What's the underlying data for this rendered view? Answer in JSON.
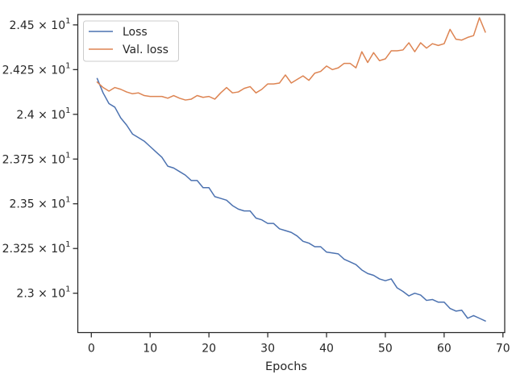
{
  "chart_data": {
    "type": "line",
    "title": "",
    "xlabel": "Epochs",
    "ylabel": "",
    "xlim": [
      -2.3,
      70.3
    ],
    "ylim": [
      22.78,
      24.558
    ],
    "xticks": [
      0,
      10,
      20,
      30,
      40,
      50,
      60,
      70
    ],
    "xtick_labels": [
      "0",
      "10",
      "20",
      "30",
      "40",
      "50",
      "60",
      "70"
    ],
    "yticks": [
      23.0,
      23.25,
      23.5,
      23.75,
      24.0,
      24.25,
      24.5
    ],
    "ytick_labels": [
      {
        "base": "2.3 × 10",
        "exp": "1"
      },
      {
        "base": "2.325 × 10",
        "exp": "1"
      },
      {
        "base": "2.35 × 10",
        "exp": "1"
      },
      {
        "base": "2.375 × 10",
        "exp": "1"
      },
      {
        "base": "2.4 × 10",
        "exp": "1"
      },
      {
        "base": "2.425 × 10",
        "exp": "1"
      },
      {
        "base": "2.45 × 10",
        "exp": "1"
      }
    ],
    "grid": false,
    "legend_position": "top-left",
    "x": [
      1,
      2,
      3,
      4,
      5,
      6,
      7,
      8,
      9,
      10,
      11,
      12,
      13,
      14,
      15,
      16,
      17,
      18,
      19,
      20,
      21,
      22,
      23,
      24,
      25,
      26,
      27,
      28,
      29,
      30,
      31,
      32,
      33,
      34,
      35,
      36,
      37,
      38,
      39,
      40,
      41,
      42,
      43,
      44,
      45,
      46,
      47,
      48,
      49,
      50,
      51,
      52,
      53,
      54,
      55,
      56,
      57,
      58,
      59,
      60,
      61,
      62,
      63,
      64,
      65,
      66,
      67
    ],
    "series": [
      {
        "name": "Loss",
        "color": "#4c72b0",
        "values": [
          24.2,
          24.12,
          24.06,
          24.04,
          23.98,
          23.94,
          23.89,
          23.87,
          23.85,
          23.82,
          23.79,
          23.76,
          23.71,
          23.7,
          23.68,
          23.66,
          23.63,
          23.63,
          23.59,
          23.59,
          23.54,
          23.53,
          23.52,
          23.49,
          23.47,
          23.46,
          23.46,
          23.42,
          23.41,
          23.39,
          23.39,
          23.36,
          23.35,
          23.34,
          23.32,
          23.29,
          23.28,
          23.26,
          23.26,
          23.23,
          23.225,
          23.22,
          23.19,
          23.175,
          23.16,
          23.13,
          23.11,
          23.1,
          23.08,
          23.07,
          23.08,
          23.03,
          23.01,
          22.985,
          23.0,
          22.99,
          22.96,
          22.965,
          22.95,
          22.95,
          22.915,
          22.9,
          22.905,
          22.86,
          22.875,
          22.86,
          22.845
        ]
      },
      {
        "name": "Val. loss",
        "color": "#dd8452",
        "values": [
          24.18,
          24.15,
          24.13,
          24.15,
          24.14,
          24.125,
          24.115,
          24.12,
          24.105,
          24.1,
          24.1,
          24.1,
          24.09,
          24.105,
          24.09,
          24.08,
          24.085,
          24.105,
          24.095,
          24.1,
          24.085,
          24.12,
          24.15,
          24.12,
          24.125,
          24.145,
          24.155,
          24.12,
          24.14,
          24.17,
          24.17,
          24.175,
          24.22,
          24.175,
          24.195,
          24.215,
          24.19,
          24.23,
          24.24,
          24.27,
          24.25,
          24.26,
          24.285,
          24.285,
          24.26,
          24.35,
          24.29,
          24.345,
          24.3,
          24.31,
          24.355,
          24.355,
          24.36,
          24.4,
          24.35,
          24.4,
          24.37,
          24.395,
          24.385,
          24.395,
          24.475,
          24.42,
          24.415,
          24.43,
          24.44,
          24.54,
          24.46
        ]
      }
    ]
  }
}
